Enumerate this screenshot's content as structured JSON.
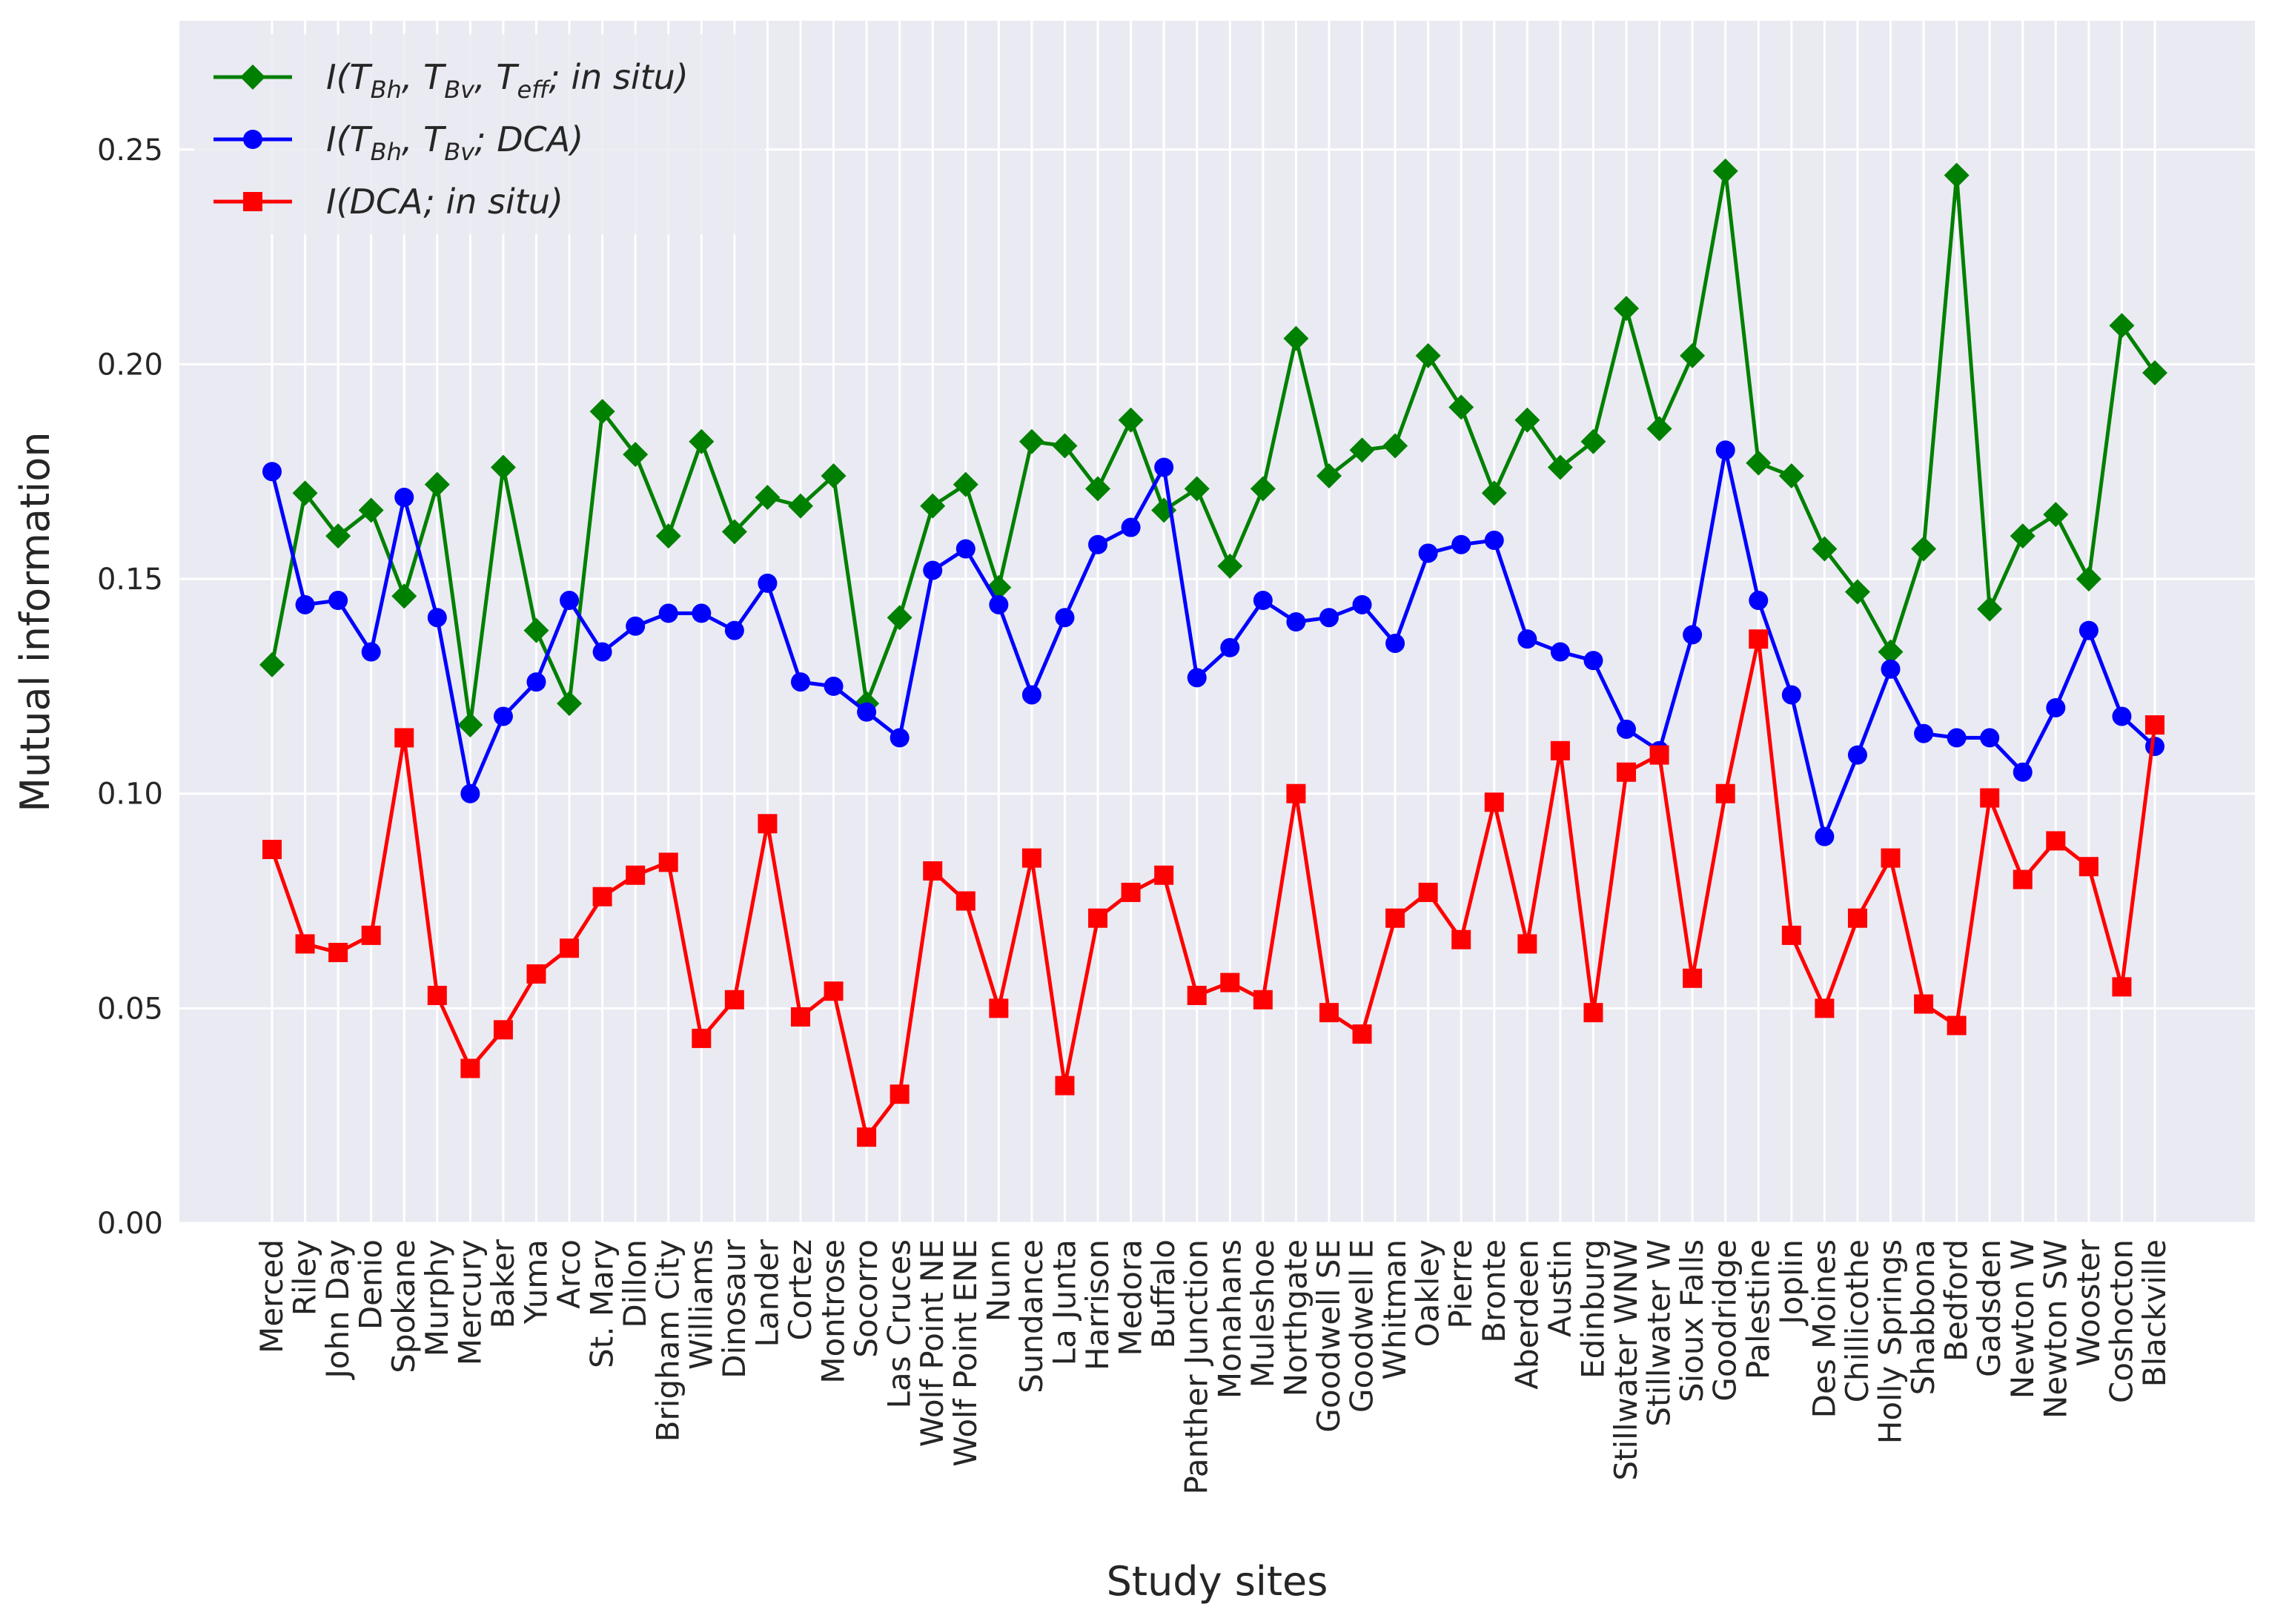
{
  "chart_data": {
    "type": "line",
    "xlabel": "Study sites",
    "ylabel": "Mutual information",
    "ylim": [
      0,
      0.28
    ],
    "yticks": [
      "0.00",
      "0.05",
      "0.10",
      "0.15",
      "0.20",
      "0.25"
    ],
    "grid": true,
    "legend_position": "top-left",
    "categories": [
      "Merced",
      "Riley",
      "John Day",
      "Denio",
      "Spokane",
      "Murphy",
      "Mercury",
      "Baker",
      "Yuma",
      "Arco",
      "St. Mary",
      "Dillon",
      "Brigham City",
      "Williams",
      "Dinosaur",
      "Lander",
      "Cortez",
      "Montrose",
      "Socorro",
      "Las Cruces",
      "Wolf Point NE",
      "Wolf Point ENE",
      "Nunn",
      "Sundance",
      "La Junta",
      "Harrison",
      "Medora",
      "Buffalo",
      "Panther Junction",
      "Monahans",
      "Muleshoe",
      "Northgate",
      "Goodwell SE",
      "Goodwell E",
      "Whitman",
      "Oakley",
      "Pierre",
      "Bronte",
      "Aberdeen",
      "Austin",
      "Edinburg",
      "Stillwater WNW",
      "Stillwater W",
      "Sioux Falls",
      "Goodridge",
      "Palestine",
      "Joplin",
      "Des Moines",
      "Chillicothe",
      "Holly Springs",
      "Shabbona",
      "Bedford",
      "Gadsden",
      "Newton W",
      "Newton SW",
      "Wooster",
      "Coshocton",
      "Blackville"
    ],
    "series": [
      {
        "legend_parts": [
          {
            "t": "I(T",
            "s": "i"
          },
          {
            "t": "Bh",
            "s": "sub"
          },
          {
            "t": ", T",
            "s": "i"
          },
          {
            "t": "Bv",
            "s": "sub"
          },
          {
            "t": ", T",
            "s": "i"
          },
          {
            "t": "eff",
            "s": "sub"
          },
          {
            "t": "; in situ)",
            "s": "i"
          }
        ],
        "color": "#008000",
        "marker": "diamond",
        "values": [
          0.13,
          0.17,
          0.16,
          0.166,
          0.146,
          0.172,
          0.116,
          0.176,
          0.138,
          0.121,
          0.189,
          0.179,
          0.16,
          0.182,
          0.161,
          0.169,
          0.167,
          0.174,
          0.121,
          0.141,
          0.167,
          0.172,
          0.148,
          0.182,
          0.181,
          0.171,
          0.187,
          0.166,
          0.171,
          0.153,
          0.171,
          0.206,
          0.174,
          0.18,
          0.181,
          0.202,
          0.19,
          0.17,
          0.187,
          0.176,
          0.182,
          0.213,
          0.185,
          0.202,
          0.245,
          0.177,
          0.174,
          0.157,
          0.147,
          0.133,
          0.157,
          0.244,
          0.143,
          0.16,
          0.165,
          0.15,
          0.209,
          0.198
        ]
      },
      {
        "legend_parts": [
          {
            "t": "I(T",
            "s": "i"
          },
          {
            "t": "Bh",
            "s": "sub"
          },
          {
            "t": ", T",
            "s": "i"
          },
          {
            "t": "Bv",
            "s": "sub"
          },
          {
            "t": "; DCA)",
            "s": "i"
          }
        ],
        "color": "#0000ff",
        "marker": "circle",
        "values": [
          0.175,
          0.144,
          0.145,
          0.133,
          0.169,
          0.141,
          0.1,
          0.118,
          0.126,
          0.145,
          0.133,
          0.139,
          0.142,
          0.142,
          0.138,
          0.149,
          0.126,
          0.125,
          0.119,
          0.113,
          0.152,
          0.157,
          0.144,
          0.123,
          0.141,
          0.158,
          0.162,
          0.176,
          0.127,
          0.134,
          0.145,
          0.14,
          0.141,
          0.144,
          0.135,
          0.156,
          0.158,
          0.159,
          0.136,
          0.133,
          0.131,
          0.115,
          0.11,
          0.137,
          0.18,
          0.145,
          0.123,
          0.09,
          0.109,
          0.129,
          0.114,
          0.113,
          0.113,
          0.105,
          0.12,
          0.138,
          0.118,
          0.111
        ]
      },
      {
        "legend_parts": [
          {
            "t": "I(DCA; in situ)",
            "s": "i"
          }
        ],
        "color": "#ff0000",
        "marker": "square",
        "values": [
          0.087,
          0.065,
          0.063,
          0.067,
          0.113,
          0.053,
          0.036,
          0.045,
          0.058,
          0.064,
          0.076,
          0.081,
          0.084,
          0.043,
          0.052,
          0.093,
          0.048,
          0.054,
          0.02,
          0.03,
          0.082,
          0.075,
          0.05,
          0.085,
          0.032,
          0.071,
          0.077,
          0.081,
          0.053,
          0.056,
          0.052,
          0.1,
          0.049,
          0.044,
          0.071,
          0.077,
          0.066,
          0.098,
          0.065,
          0.11,
          0.049,
          0.105,
          0.109,
          0.057,
          0.1,
          0.136,
          0.067,
          0.05,
          0.071,
          0.085,
          0.051,
          0.046,
          0.099,
          0.08,
          0.089,
          0.083,
          0.055,
          0.116
        ]
      }
    ]
  }
}
